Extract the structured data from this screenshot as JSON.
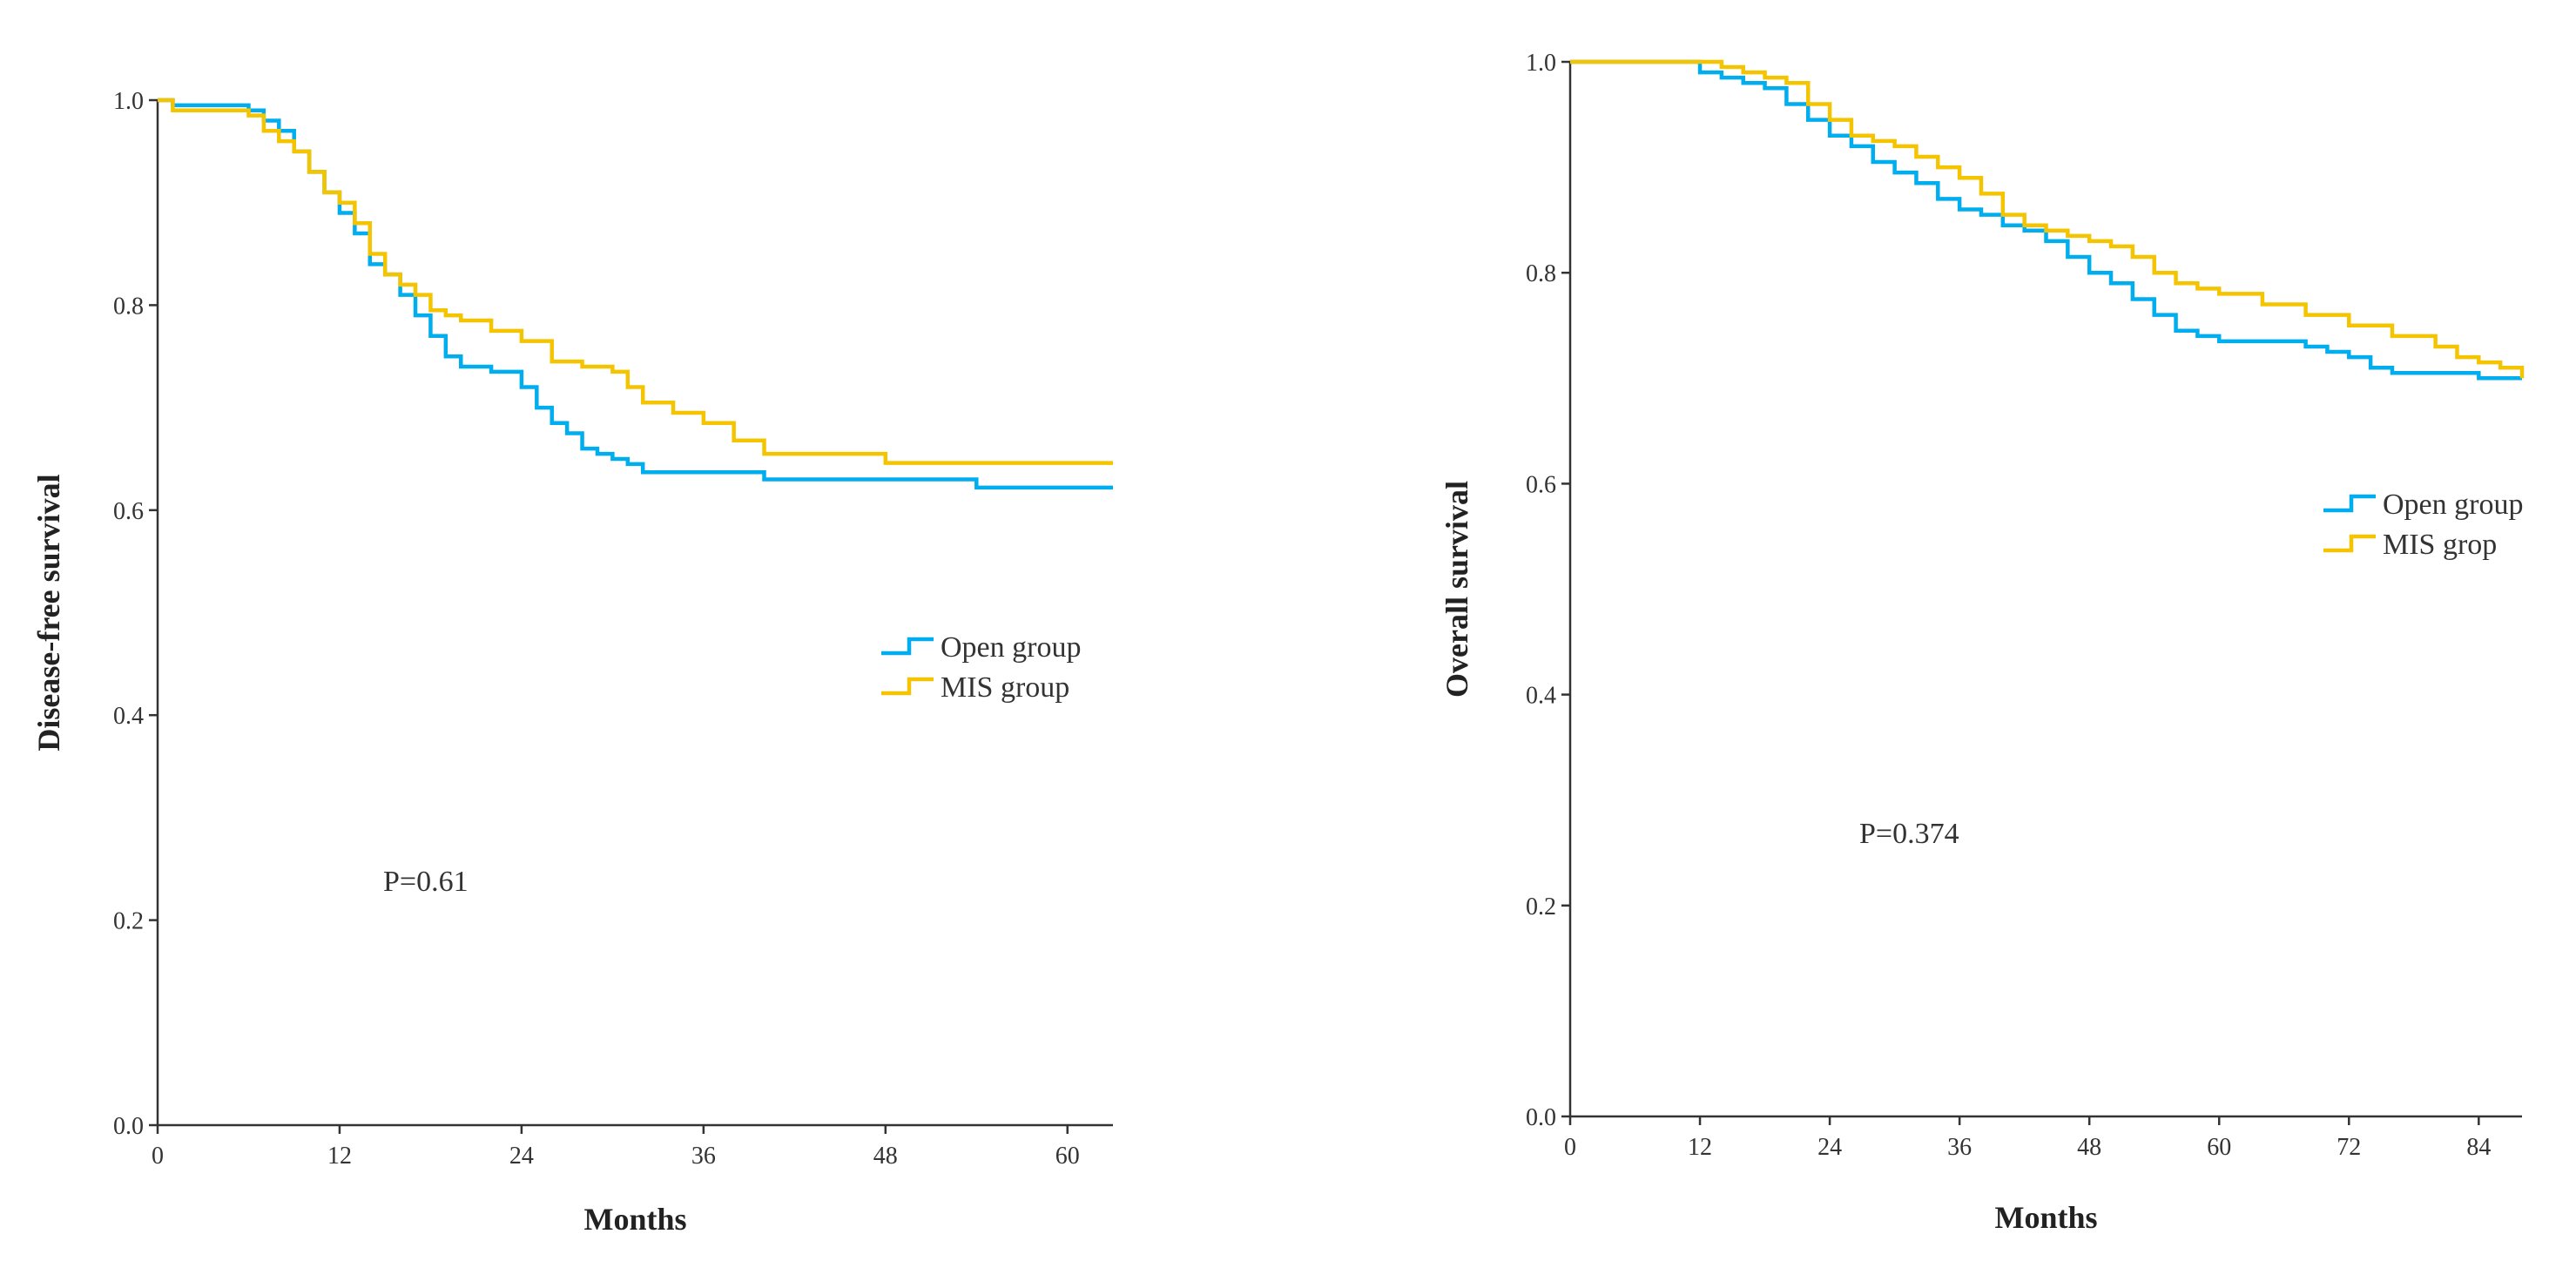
{
  "colors": {
    "open": "#00aeef",
    "mis": "#f5c400"
  },
  "chart_data": [
    {
      "type": "line",
      "subtype": "kaplan-meier",
      "title": "",
      "xlabel": "Months",
      "ylabel": "Disease-free survival",
      "xlim": [
        0,
        63
      ],
      "ylim": [
        0,
        1.0
      ],
      "xticks": [
        "0",
        "12",
        "24",
        "36",
        "48",
        "60"
      ],
      "yticks": [
        "0.0",
        "0.2",
        "0.4",
        "0.6",
        "0.8",
        "1.0"
      ],
      "legend": [
        "Open group",
        "MIS group"
      ],
      "legend_position": "right-middle",
      "annotation": "P=0.61",
      "series": [
        {
          "name": "Open group",
          "color": "#00aeef",
          "x": [
            0,
            1,
            6,
            7,
            8,
            9,
            10,
            11,
            12,
            13,
            14,
            15,
            16,
            17,
            18,
            19,
            20,
            22,
            24,
            25,
            26,
            27,
            28,
            29,
            30,
            31,
            32,
            36,
            40,
            48,
            54,
            63
          ],
          "y": [
            1.0,
            0.995,
            0.99,
            0.98,
            0.97,
            0.95,
            0.93,
            0.91,
            0.89,
            0.87,
            0.84,
            0.83,
            0.81,
            0.79,
            0.77,
            0.75,
            0.74,
            0.735,
            0.72,
            0.7,
            0.685,
            0.675,
            0.66,
            0.655,
            0.65,
            0.645,
            0.637,
            0.637,
            0.63,
            0.63,
            0.622,
            0.622
          ]
        },
        {
          "name": "MIS group",
          "color": "#f5c400",
          "x": [
            0,
            1,
            6,
            7,
            8,
            9,
            10,
            11,
            12,
            13,
            14,
            15,
            16,
            17,
            18,
            19,
            20,
            22,
            24,
            26,
            28,
            30,
            31,
            32,
            34,
            36,
            38,
            40,
            48,
            63
          ],
          "y": [
            1.0,
            0.99,
            0.985,
            0.97,
            0.96,
            0.95,
            0.93,
            0.91,
            0.9,
            0.88,
            0.85,
            0.83,
            0.82,
            0.81,
            0.795,
            0.79,
            0.785,
            0.775,
            0.765,
            0.745,
            0.74,
            0.735,
            0.72,
            0.705,
            0.695,
            0.685,
            0.668,
            0.655,
            0.646,
            0.646
          ]
        }
      ]
    },
    {
      "type": "line",
      "subtype": "kaplan-meier",
      "title": "",
      "xlabel": "Months",
      "ylabel": "Overall survival",
      "xlim": [
        0,
        88
      ],
      "ylim": [
        0,
        1.0
      ],
      "xticks": [
        "0",
        "12",
        "24",
        "36",
        "48",
        "60",
        "72",
        "84"
      ],
      "yticks": [
        "0.0",
        "0.2",
        "0.4",
        "0.6",
        "0.8",
        "1.0"
      ],
      "legend": [
        "Open group",
        "MIS grop"
      ],
      "legend_position": "right-upper",
      "annotation": "P=0.374",
      "series": [
        {
          "name": "Open group",
          "color": "#00aeef",
          "x": [
            0,
            11,
            12,
            14,
            16,
            18,
            20,
            22,
            24,
            26,
            28,
            30,
            32,
            34,
            36,
            38,
            40,
            42,
            44,
            46,
            48,
            50,
            52,
            54,
            56,
            58,
            60,
            64,
            68,
            70,
            72,
            74,
            76,
            80,
            84,
            88
          ],
          "y": [
            1.0,
            1.0,
            0.99,
            0.985,
            0.98,
            0.975,
            0.96,
            0.945,
            0.93,
            0.92,
            0.905,
            0.895,
            0.885,
            0.87,
            0.86,
            0.855,
            0.845,
            0.84,
            0.83,
            0.815,
            0.8,
            0.79,
            0.775,
            0.76,
            0.745,
            0.74,
            0.735,
            0.735,
            0.73,
            0.725,
            0.72,
            0.71,
            0.705,
            0.705,
            0.7,
            0.7
          ]
        },
        {
          "name": "MIS grop",
          "color": "#f5c400",
          "x": [
            0,
            12,
            14,
            16,
            18,
            20,
            22,
            24,
            26,
            28,
            30,
            32,
            34,
            36,
            38,
            40,
            42,
            44,
            46,
            48,
            50,
            52,
            54,
            56,
            58,
            60,
            64,
            68,
            72,
            76,
            80,
            82,
            84,
            86,
            88
          ],
          "y": [
            1.0,
            1.0,
            0.995,
            0.99,
            0.985,
            0.98,
            0.96,
            0.945,
            0.93,
            0.925,
            0.92,
            0.91,
            0.9,
            0.89,
            0.875,
            0.855,
            0.845,
            0.84,
            0.835,
            0.83,
            0.825,
            0.815,
            0.8,
            0.79,
            0.785,
            0.78,
            0.77,
            0.76,
            0.75,
            0.74,
            0.73,
            0.72,
            0.715,
            0.71,
            0.7
          ]
        }
      ]
    }
  ]
}
